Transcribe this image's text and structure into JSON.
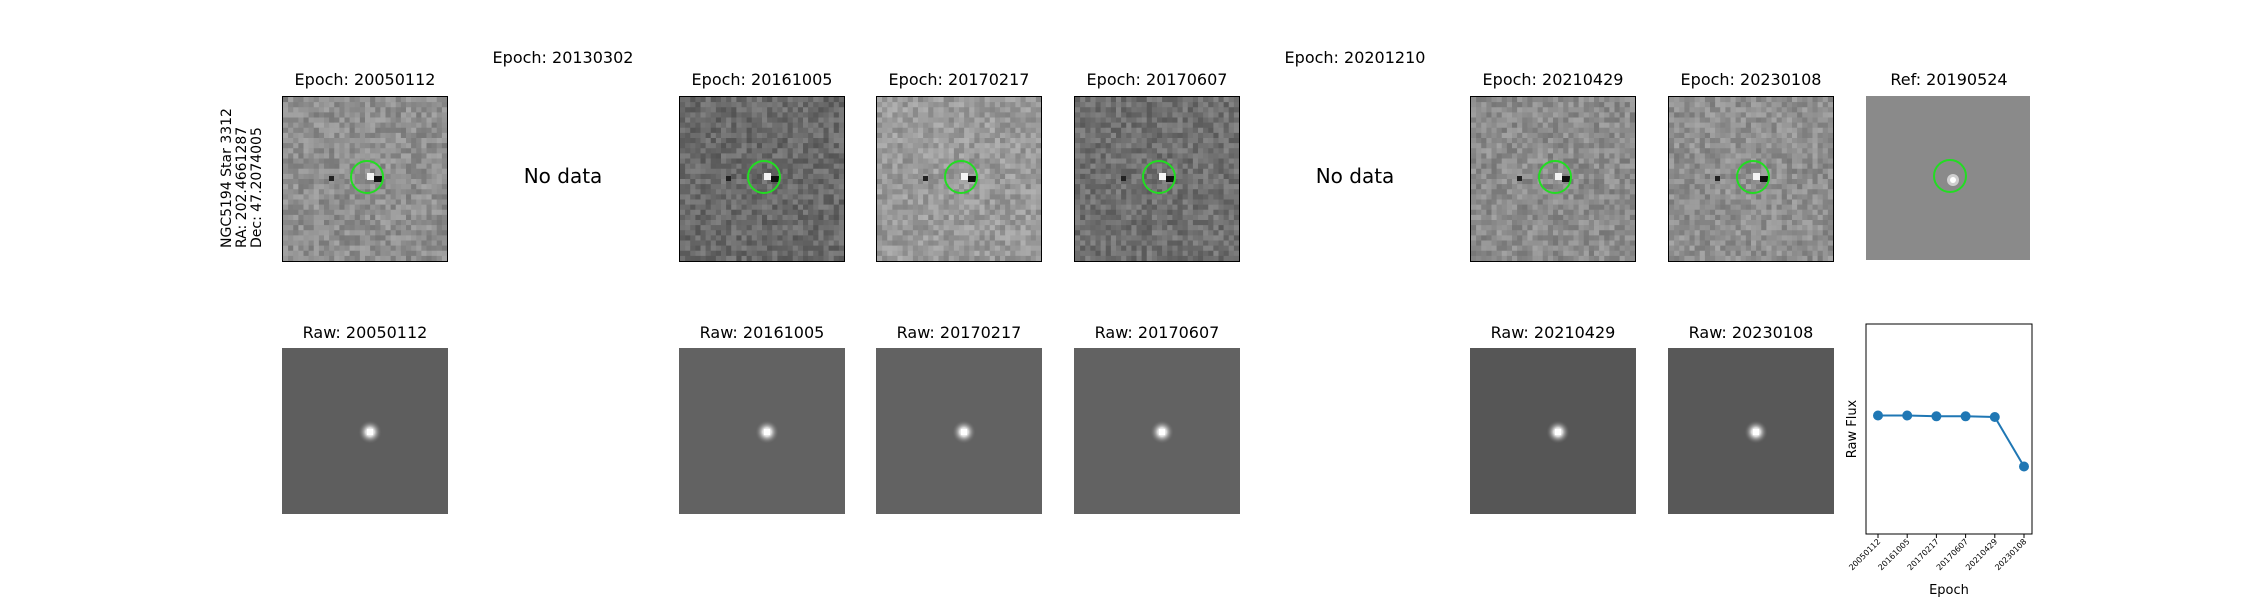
{
  "figure": {
    "source_label": {
      "lines": [
        "NGC5194 Star 3312",
        "RA: 202.4661287",
        "Dec: 47.2074005"
      ]
    },
    "no_data_text": "No data",
    "diff_row": [
      {
        "title": "Epoch: 20050112",
        "has_data": true,
        "tone": "#8f8f8f"
      },
      {
        "title": "Epoch: 20130302",
        "has_data": false
      },
      {
        "title": "Epoch: 20161005",
        "has_data": true,
        "tone": "#6a6a6a"
      },
      {
        "title": "Epoch: 20170217",
        "has_data": true,
        "tone": "#9a9a9a"
      },
      {
        "title": "Epoch: 20170607",
        "has_data": true,
        "tone": "#707070"
      },
      {
        "title": "Epoch: 20201210",
        "has_data": false
      },
      {
        "title": "Epoch: 20210429",
        "has_data": true,
        "tone": "#8c8c8c"
      },
      {
        "title": "Epoch: 20230108",
        "has_data": true,
        "tone": "#8f8f8f"
      },
      {
        "title": "Ref: 20190524",
        "has_data": true,
        "tone": "#8a8a8a",
        "is_ref": true
      }
    ],
    "raw_row": [
      {
        "title": "Raw: 20050112",
        "tone": "#5e5e5e"
      },
      null,
      {
        "title": "Raw: 20161005",
        "tone": "#626262"
      },
      {
        "title": "Raw: 20170217",
        "tone": "#626262"
      },
      {
        "title": "Raw: 20170607",
        "tone": "#626262"
      },
      null,
      {
        "title": "Raw: 20210429",
        "tone": "#565656"
      },
      {
        "title": "Raw: 20230108",
        "tone": "#585858"
      }
    ],
    "circle_color": "#22dd22"
  },
  "chart_data": {
    "type": "line",
    "title": "",
    "xlabel": "Epoch",
    "ylabel": "Raw Flux",
    "x": [
      "20050112",
      "20161005",
      "20170217",
      "20170607",
      "20210429",
      "20230108"
    ],
    "series": [
      {
        "values": [
          0.79,
          0.79,
          0.785,
          0.785,
          0.78,
          0.45
        ],
        "color": "#1f77b4"
      }
    ],
    "ylim": [
      0,
      1.4
    ],
    "grid": false
  }
}
